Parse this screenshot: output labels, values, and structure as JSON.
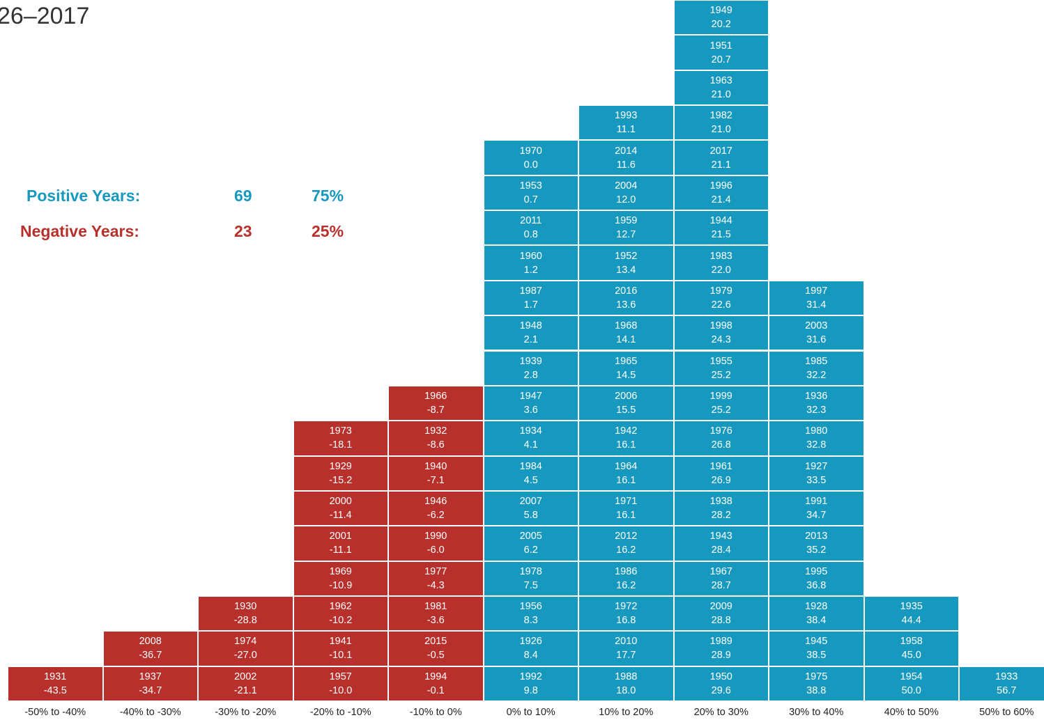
{
  "header": {
    "period_text": "26–2017"
  },
  "summary": {
    "positive": {
      "label": "Positive Years:",
      "count": "69",
      "pct": "75%"
    },
    "negative": {
      "label": "Negative Years:",
      "count": "23",
      "pct": "25%"
    }
  },
  "colors": {
    "positive": "#1799bf",
    "negative": "#b8302b"
  },
  "chart_data": {
    "type": "histogram",
    "categories": [
      "-50% to -40%",
      "-40% to -30%",
      "-30% to -20%",
      "-20% to -10%",
      "-10% to 0%",
      "0% to 10%",
      "10% to 20%",
      "20% to 30%",
      "30% to 40%",
      "40% to 50%",
      "50% to 60%"
    ],
    "counts": [
      1,
      2,
      3,
      8,
      9,
      16,
      17,
      20,
      12,
      3,
      1
    ],
    "bins": [
      [
        {
          "year": "1931",
          "value": "-43.5"
        }
      ],
      [
        {
          "year": "1937",
          "value": "-34.7"
        },
        {
          "year": "2008",
          "value": "-36.7"
        }
      ],
      [
        {
          "year": "2002",
          "value": "-21.1"
        },
        {
          "year": "1974",
          "value": "-27.0"
        },
        {
          "year": "1930",
          "value": "-28.8"
        }
      ],
      [
        {
          "year": "1957",
          "value": "-10.0"
        },
        {
          "year": "1941",
          "value": "-10.1"
        },
        {
          "year": "1962",
          "value": "-10.2"
        },
        {
          "year": "1969",
          "value": "-10.9"
        },
        {
          "year": "2001",
          "value": "-11.1"
        },
        {
          "year": "2000",
          "value": "-11.4"
        },
        {
          "year": "1929",
          "value": "-15.2"
        },
        {
          "year": "1973",
          "value": "-18.1"
        }
      ],
      [
        {
          "year": "1994",
          "value": "-0.1"
        },
        {
          "year": "2015",
          "value": "-0.5"
        },
        {
          "year": "1981",
          "value": "-3.6"
        },
        {
          "year": "1977",
          "value": "-4.3"
        },
        {
          "year": "1990",
          "value": "-6.0"
        },
        {
          "year": "1946",
          "value": "-6.2"
        },
        {
          "year": "1940",
          "value": "-7.1"
        },
        {
          "year": "1932",
          "value": "-8.6"
        },
        {
          "year": "1966",
          "value": "-8.7"
        }
      ],
      [
        {
          "year": "1992",
          "value": "9.8"
        },
        {
          "year": "1926",
          "value": "8.4"
        },
        {
          "year": "1956",
          "value": "8.3"
        },
        {
          "year": "1978",
          "value": "7.5"
        },
        {
          "year": "2005",
          "value": "6.2"
        },
        {
          "year": "2007",
          "value": "5.8"
        },
        {
          "year": "1984",
          "value": "4.5"
        },
        {
          "year": "1934",
          "value": "4.1"
        },
        {
          "year": "1947",
          "value": "3.6"
        },
        {
          "year": "1939",
          "value": "2.8"
        },
        {
          "year": "1948",
          "value": "2.1"
        },
        {
          "year": "1987",
          "value": "1.7"
        },
        {
          "year": "1960",
          "value": "1.2"
        },
        {
          "year": "2011",
          "value": "0.8"
        },
        {
          "year": "1953",
          "value": "0.7"
        },
        {
          "year": "1970",
          "value": "0.0"
        }
      ],
      [
        {
          "year": "1988",
          "value": "18.0"
        },
        {
          "year": "2010",
          "value": "17.7"
        },
        {
          "year": "1972",
          "value": "16.8"
        },
        {
          "year": "1986",
          "value": "16.2"
        },
        {
          "year": "2012",
          "value": "16.2"
        },
        {
          "year": "1971",
          "value": "16.1"
        },
        {
          "year": "1964",
          "value": "16.1"
        },
        {
          "year": "1942",
          "value": "16.1"
        },
        {
          "year": "2006",
          "value": "15.5"
        },
        {
          "year": "1965",
          "value": "14.5"
        },
        {
          "year": "1968",
          "value": "14.1"
        },
        {
          "year": "2016",
          "value": "13.6"
        },
        {
          "year": "1952",
          "value": "13.4"
        },
        {
          "year": "1959",
          "value": "12.7"
        },
        {
          "year": "2004",
          "value": "12.0"
        },
        {
          "year": "2014",
          "value": "11.6"
        },
        {
          "year": "1993",
          "value": "11.1"
        }
      ],
      [
        {
          "year": "1950",
          "value": "29.6"
        },
        {
          "year": "1989",
          "value": "28.9"
        },
        {
          "year": "2009",
          "value": "28.8"
        },
        {
          "year": "1967",
          "value": "28.7"
        },
        {
          "year": "1943",
          "value": "28.4"
        },
        {
          "year": "1938",
          "value": "28.2"
        },
        {
          "year": "1961",
          "value": "26.9"
        },
        {
          "year": "1976",
          "value": "26.8"
        },
        {
          "year": "1999",
          "value": "25.2"
        },
        {
          "year": "1955",
          "value": "25.2"
        },
        {
          "year": "1998",
          "value": "24.3"
        },
        {
          "year": "1979",
          "value": "22.6"
        },
        {
          "year": "1983",
          "value": "22.0"
        },
        {
          "year": "1944",
          "value": "21.5"
        },
        {
          "year": "1996",
          "value": "21.4"
        },
        {
          "year": "2017",
          "value": "21.1"
        },
        {
          "year": "1982",
          "value": "21.0"
        },
        {
          "year": "1963",
          "value": "21.0"
        },
        {
          "year": "1951",
          "value": "20.7"
        },
        {
          "year": "1949",
          "value": "20.2"
        }
      ],
      [
        {
          "year": "1975",
          "value": "38.8"
        },
        {
          "year": "1945",
          "value": "38.5"
        },
        {
          "year": "1928",
          "value": "38.4"
        },
        {
          "year": "1995",
          "value": "36.8"
        },
        {
          "year": "2013",
          "value": "35.2"
        },
        {
          "year": "1991",
          "value": "34.7"
        },
        {
          "year": "1927",
          "value": "33.5"
        },
        {
          "year": "1980",
          "value": "32.8"
        },
        {
          "year": "1936",
          "value": "32.3"
        },
        {
          "year": "1985",
          "value": "32.2"
        },
        {
          "year": "2003",
          "value": "31.6"
        },
        {
          "year": "1997",
          "value": "31.4"
        }
      ],
      [
        {
          "year": "1954",
          "value": "50.0"
        },
        {
          "year": "1958",
          "value": "45.0"
        },
        {
          "year": "1935",
          "value": "44.4"
        }
      ],
      [
        {
          "year": "1933",
          "value": "56.7"
        }
      ]
    ]
  }
}
